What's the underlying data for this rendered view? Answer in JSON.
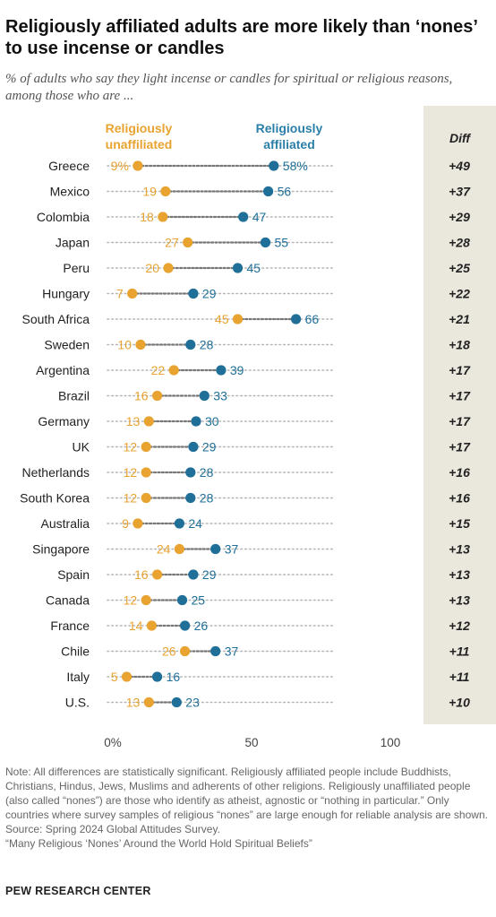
{
  "title": "Religiously affiliated adults are more likely than ‘nones’ to use incense or candles",
  "subtitle": "% of adults who say they light incense or candles for spiritual or religious reasons, among those who are ...",
  "legend": {
    "unaffiliated": "Religiously unaffiliated",
    "affiliated": "Religiously affiliated"
  },
  "diff_header": "Diff",
  "colors": {
    "unaffiliated": "#e8a331",
    "affiliated": "#1f6f99",
    "diff_band": "#eae7dd"
  },
  "chart_data": {
    "type": "dot",
    "xlim": [
      0,
      100
    ],
    "x_ticks": [
      "0%",
      "50",
      "100"
    ],
    "categories": [
      "Greece",
      "Mexico",
      "Colombia",
      "Japan",
      "Peru",
      "Hungary",
      "South Africa",
      "Sweden",
      "Argentina",
      "Brazil",
      "Germany",
      "UK",
      "Netherlands",
      "South Korea",
      "Australia",
      "Singapore",
      "Spain",
      "Canada",
      "France",
      "Chile",
      "Italy",
      "U.S."
    ],
    "series": [
      {
        "name": "Religiously unaffiliated",
        "values": [
          9,
          19,
          18,
          27,
          20,
          7,
          45,
          10,
          22,
          16,
          13,
          12,
          12,
          12,
          9,
          24,
          16,
          12,
          14,
          26,
          5,
          13
        ]
      },
      {
        "name": "Religiously affiliated",
        "values": [
          58,
          56,
          47,
          55,
          45,
          29,
          66,
          28,
          39,
          33,
          30,
          29,
          28,
          28,
          24,
          37,
          29,
          25,
          26,
          37,
          16,
          23
        ]
      }
    ],
    "unaffiliated_labels": [
      "9%",
      "19",
      "18",
      "27",
      "20",
      "7",
      "45",
      "10",
      "22",
      "16",
      "13",
      "12",
      "12",
      "12",
      "9",
      "24",
      "16",
      "12",
      "14",
      "26",
      "5",
      "13"
    ],
    "affiliated_labels": [
      "58%",
      "56",
      "47",
      "55",
      "45",
      "29",
      "66",
      "28",
      "39",
      "33",
      "30",
      "29",
      "28",
      "28",
      "24",
      "37",
      "29",
      "25",
      "26",
      "37",
      "16",
      "23"
    ],
    "diff": [
      "+49",
      "+37",
      "+29",
      "+28",
      "+25",
      "+22",
      "+21",
      "+18",
      "+17",
      "+17",
      "+17",
      "+17",
      "+16",
      "+16",
      "+15",
      "+13",
      "+13",
      "+13",
      "+12",
      "+11",
      "+11",
      "+10"
    ]
  },
  "notes": [
    "Note: All differences are statistically significant. Religiously affiliated people include Buddhists, Christians, Hindus, Jews, Muslims and adherents of other religions. Religiously unaffiliated people (also called “nones”) are those who identify as atheist, agnostic or “nothing in particular.” Only countries where survey samples of religious “nones” are large enough for reliable analysis are shown.",
    "Source: Spring 2024 Global Attitudes Survey.",
    "“Many Religious ‘Nones’ Around the World Hold Spiritual Beliefs”"
  ],
  "org": "PEW RESEARCH CENTER"
}
